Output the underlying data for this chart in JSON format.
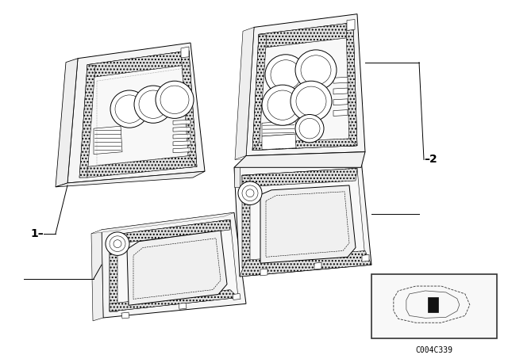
{
  "background_color": "#ffffff",
  "fig_width": 6.4,
  "fig_height": 4.48,
  "dpi": 100,
  "label1_text": "1–",
  "label2_text": "–2",
  "callout_code": "C004C339",
  "line_color": "#000000",
  "line_width": 0.7,
  "thin_line": 0.4,
  "hatch_color": "#888888"
}
